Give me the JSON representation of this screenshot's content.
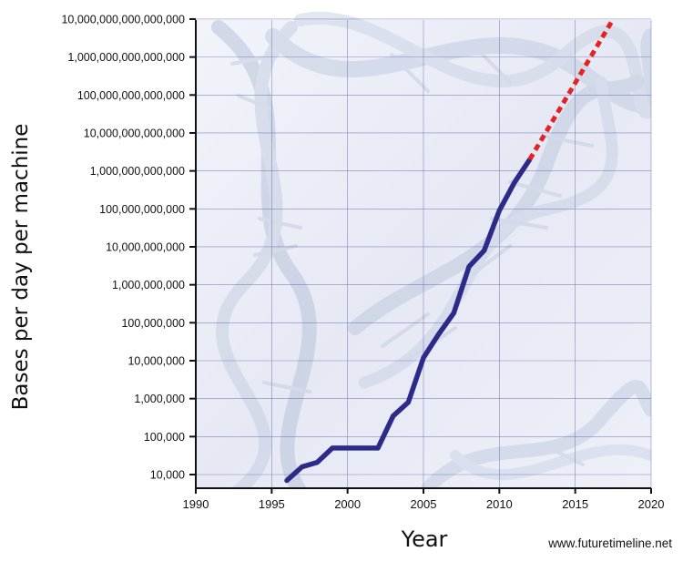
{
  "chart_data": {
    "type": "line",
    "title": "",
    "xlabel": "Year",
    "ylabel": "Bases per day per machine",
    "y_scale": "log",
    "xlim": [
      1990,
      2020
    ],
    "ylim": [
      5000,
      10000000000000000
    ],
    "x_ticks": [
      1990,
      1995,
      2000,
      2005,
      2010,
      2015,
      2020
    ],
    "x_tick_labels": [
      "1990",
      "1995",
      "2000",
      "2005",
      "2010",
      "2015",
      "2020"
    ],
    "y_ticks": [
      10000,
      100000,
      1000000,
      10000000,
      100000000,
      1000000000,
      10000000000,
      100000000000,
      1000000000000,
      10000000000000,
      100000000000000,
      1000000000000000,
      10000000000000000
    ],
    "y_tick_labels": [
      "10,000",
      "100,000",
      "1,000,000",
      "10,000,000",
      "100,000,000",
      "1,000,000,000",
      "10,000,000,000",
      "100,000,000,000",
      "1,000,000,000,000",
      "10,000,000,000,000",
      "100,000,000,000,000",
      "1,000,000,000,000,000",
      "10,000,000,000,000,000"
    ],
    "grid": true,
    "background": "DNA double helix image",
    "series": [
      {
        "style": "solid",
        "color": "#2d2a8a",
        "x": [
          1996,
          1997,
          1998,
          1999,
          2000,
          2001,
          2002,
          2003,
          2004,
          2005,
          2006,
          2007,
          2008,
          2009,
          2010,
          2011,
          2012
        ],
        "y": [
          7000,
          16000,
          21000,
          50000,
          50000,
          50000,
          50000,
          350000,
          800000,
          12000000,
          50000000,
          180000000,
          3000000000,
          8000000000,
          90000000000,
          500000000000,
          2000000000000
        ]
      },
      {
        "style": "dashed",
        "color": "#e52222",
        "x": [
          2012,
          2017.5
        ],
        "y": [
          2000000000000,
          10000000000000000
        ]
      }
    ]
  },
  "credit": "www.futuretimeline.net",
  "colors": {
    "axis": "#111111",
    "grid": "#5a5fa8",
    "plot_background": "#e9ecf6"
  }
}
